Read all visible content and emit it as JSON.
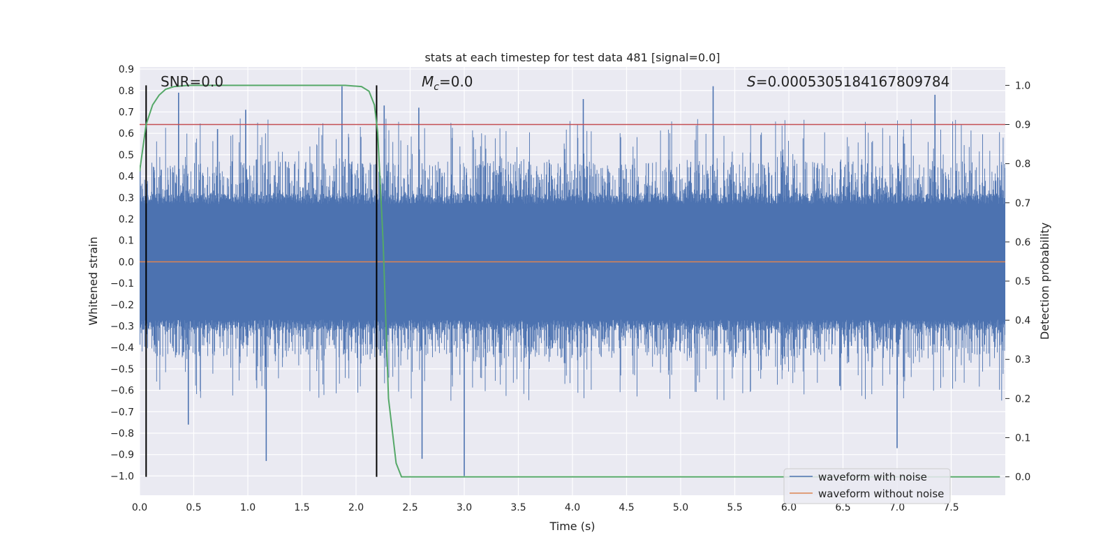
{
  "chart_data": {
    "type": "line",
    "title": "stats at each timestep for test data 481 [signal=0.0]",
    "xlabel": "Time (s)",
    "ylabel": "Whitened strain",
    "y2label": "Detection probability",
    "xlim": [
      0.0,
      8.0
    ],
    "ylim": [
      -1.09,
      0.91
    ],
    "y2lim": [
      -0.047,
      1.047
    ],
    "x_ticks": [
      "0.0",
      "0.5",
      "1.0",
      "1.5",
      "2.0",
      "2.5",
      "3.0",
      "3.5",
      "4.0",
      "4.5",
      "5.0",
      "5.5",
      "6.0",
      "6.5",
      "7.0",
      "7.5"
    ],
    "x_tick_values": [
      0.0,
      0.5,
      1.0,
      1.5,
      2.0,
      2.5,
      3.0,
      3.5,
      4.0,
      4.5,
      5.0,
      5.5,
      6.0,
      6.5,
      7.0,
      7.5
    ],
    "y_ticks": [
      "0.9",
      "0.8",
      "0.7",
      "0.6",
      "0.5",
      "0.4",
      "0.3",
      "0.2",
      "0.1",
      "0.0",
      "−0.1",
      "−0.2",
      "−0.3",
      "−0.4",
      "−0.5",
      "−0.6",
      "−0.7",
      "−0.8",
      "−0.9",
      "−1.0"
    ],
    "y_tick_values": [
      0.9,
      0.8,
      0.7,
      0.6,
      0.5,
      0.4,
      0.3,
      0.2,
      0.1,
      0.0,
      -0.1,
      -0.2,
      -0.3,
      -0.4,
      -0.5,
      -0.6,
      -0.7,
      -0.8,
      -0.9,
      -1.0
    ],
    "y2_ticks": [
      "1.0",
      "0.9",
      "0.8",
      "0.7",
      "0.6",
      "0.5",
      "0.4",
      "0.3",
      "0.2",
      "0.1",
      "0.0"
    ],
    "y2_tick_values": [
      1.0,
      0.9,
      0.8,
      0.7,
      0.6,
      0.5,
      0.4,
      0.3,
      0.2,
      0.1,
      0.0
    ],
    "annotations": {
      "snr": "SNR=0.0",
      "mc_symbol": "M",
      "mc_sub": "c",
      "mc_value": "=0.0",
      "s_symbol": "S",
      "s_value": "=0.0005305184167809784"
    },
    "series": [
      {
        "name": "waveform with noise",
        "color": "#4c72b0",
        "style": "dense noise band",
        "core_amplitude": 0.27,
        "spike_range": [
          -1.0,
          0.82
        ],
        "peaks": [
          [
            0.2,
            0.43
          ],
          [
            0.36,
            0.79
          ],
          [
            0.45,
            -0.76
          ],
          [
            0.72,
            0.62
          ],
          [
            0.98,
            0.71
          ],
          [
            1.17,
            -0.93
          ],
          [
            1.87,
            0.82
          ],
          [
            2.26,
            0.73
          ],
          [
            2.58,
            0.72
          ],
          [
            2.61,
            -0.92
          ],
          [
            3.0,
            -1.0
          ],
          [
            4.1,
            0.76
          ],
          [
            5.3,
            0.82
          ],
          [
            6.47,
            -0.58
          ],
          [
            7.0,
            -0.87
          ],
          [
            7.35,
            0.78
          ]
        ]
      },
      {
        "name": "waveform without noise",
        "color": "#dd8452",
        "constant": 0.0
      },
      {
        "name": "detection probability",
        "color": "#55a868",
        "axis": "right",
        "x": [
          0.0,
          0.06,
          0.12,
          0.18,
          0.24,
          0.32,
          0.45,
          0.8,
          1.2,
          1.6,
          1.9,
          2.05,
          2.12,
          2.17,
          2.2,
          2.25,
          2.3,
          2.37,
          2.42,
          2.6,
          3.0,
          4.0,
          5.0,
          6.0,
          7.0,
          7.95
        ],
        "y": [
          0.78,
          0.9,
          0.95,
          0.975,
          0.99,
          0.997,
          1.0,
          1.0,
          1.0,
          1.0,
          1.0,
          0.997,
          0.985,
          0.95,
          0.88,
          0.6,
          0.2,
          0.035,
          0.0,
          0.0,
          0.0,
          0.0,
          0.0,
          0.0,
          0.0,
          0.0
        ]
      }
    ],
    "threshold": {
      "axis": "right",
      "value": 0.9,
      "color": "#c44e52"
    },
    "vertical_lines": [
      0.06,
      2.19
    ],
    "legend": {
      "placement": "lower-right",
      "entries": [
        {
          "label": "waveform with noise",
          "color": "#4c72b0"
        },
        {
          "label": "waveform without noise",
          "color": "#dd8452"
        }
      ]
    },
    "grid": true,
    "background": "#eaeaf2"
  }
}
